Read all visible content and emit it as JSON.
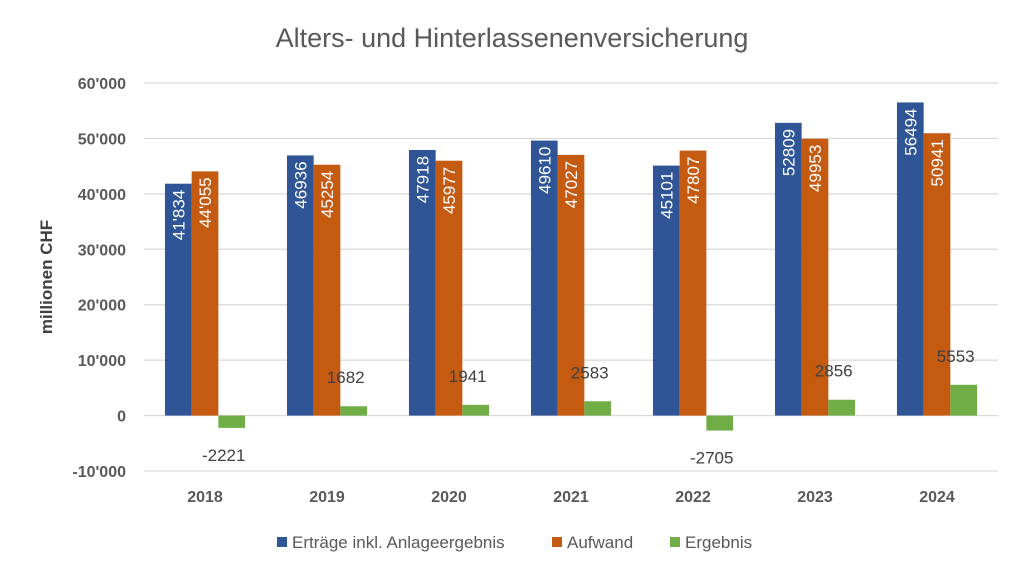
{
  "chart_data": {
    "type": "bar",
    "title": "Alters- und Hinterlassenenversicherung",
    "xlabel": "",
    "ylabel": "millionen CHF",
    "ylim": [
      -10000,
      60000
    ],
    "yticks": [
      -10000,
      0,
      10000,
      20000,
      30000,
      40000,
      50000,
      60000
    ],
    "ytick_labels": [
      "-10'000",
      "0",
      "10'000",
      "20'000",
      "30'000",
      "40'000",
      "50'000",
      "60'000"
    ],
    "grid": true,
    "legend_position": "bottom",
    "categories": [
      "2018",
      "2019",
      "2020",
      "2021",
      "2022",
      "2023",
      "2024"
    ],
    "series": [
      {
        "name": "Erträge inkl. Anlageergebnis",
        "color": "#2F5597",
        "values": [
          41834,
          46936,
          47918,
          49610,
          45101,
          52809,
          56494
        ],
        "labels": [
          "41'834",
          "46936",
          "47918",
          "49610",
          "45101",
          "52809",
          "56494"
        ]
      },
      {
        "name": "Aufwand",
        "color": "#C55A11",
        "values": [
          44055,
          45254,
          45977,
          47027,
          47807,
          49953,
          50941
        ],
        "labels": [
          "44'055",
          "45254",
          "45977",
          "47027",
          "47807",
          "49953",
          "50941"
        ]
      },
      {
        "name": "Ergebnis",
        "color": "#70AD47",
        "values": [
          -2221,
          1682,
          1941,
          2583,
          -2705,
          2856,
          5553
        ],
        "labels": [
          "-2221",
          "1682",
          "1941",
          "2583",
          "-2705",
          "2856",
          "5553"
        ]
      }
    ]
  }
}
